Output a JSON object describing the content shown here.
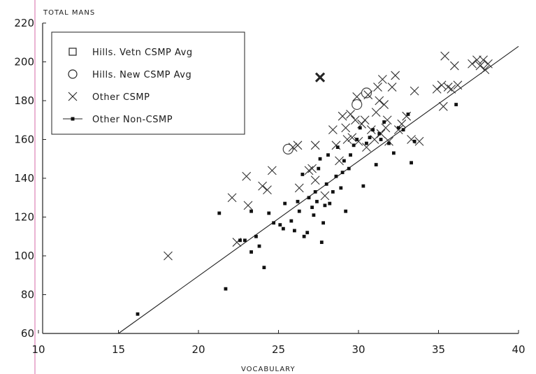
{
  "chart_data": {
    "type": "scatter",
    "xlabel": "VOCABULARY",
    "ylabel": "TOTAL MANS",
    "xlim": [
      10,
      40
    ],
    "ylim": [
      60,
      220
    ],
    "x_ticks": [
      10,
      15,
      20,
      25,
      30,
      35,
      40
    ],
    "y_ticks": [
      60,
      80,
      100,
      120,
      140,
      160,
      180,
      200,
      220
    ],
    "grid": false,
    "legend_position": "top-left",
    "legend": [
      {
        "label": "Hills. Vetn CSMP Avg",
        "marker": "square"
      },
      {
        "label": "Hills. New CSMP Avg",
        "marker": "circle"
      },
      {
        "label": "Other CSMP",
        "marker": "x"
      },
      {
        "label": "Other Non-CSMP",
        "marker": "dot-line"
      }
    ],
    "series": [
      {
        "name": "Hills. Vetn CSMP Avg",
        "marker": "square",
        "points": [
          [
            27.6,
            192
          ]
        ]
      },
      {
        "name": "Hills. New CSMP Avg",
        "marker": "circle",
        "points": [
          [
            25.6,
            155
          ],
          [
            29.9,
            178
          ],
          [
            30.5,
            184
          ]
        ]
      },
      {
        "name": "Other CSMP",
        "marker": "x",
        "points": [
          [
            18.1,
            100
          ],
          [
            22.1,
            130
          ],
          [
            22.4,
            107
          ],
          [
            23.0,
            141
          ],
          [
            23.1,
            126
          ],
          [
            24.0,
            136
          ],
          [
            24.3,
            134
          ],
          [
            24.6,
            144
          ],
          [
            25.9,
            156
          ],
          [
            26.2,
            157
          ],
          [
            26.3,
            135
          ],
          [
            26.9,
            144
          ],
          [
            27.1,
            145
          ],
          [
            27.3,
            157
          ],
          [
            27.3,
            139
          ],
          [
            27.6,
            192
          ],
          [
            27.9,
            131
          ],
          [
            28.4,
            165
          ],
          [
            28.6,
            157
          ],
          [
            28.8,
            149
          ],
          [
            29.0,
            172
          ],
          [
            29.2,
            166
          ],
          [
            29.3,
            160
          ],
          [
            29.5,
            173
          ],
          [
            29.6,
            161
          ],
          [
            29.8,
            170
          ],
          [
            29.9,
            182
          ],
          [
            30.0,
            159
          ],
          [
            30.2,
            168
          ],
          [
            30.4,
            170
          ],
          [
            30.5,
            156
          ],
          [
            30.6,
            183
          ],
          [
            30.8,
            165
          ],
          [
            31.0,
            160
          ],
          [
            31.1,
            174
          ],
          [
            31.2,
            187
          ],
          [
            31.3,
            180
          ],
          [
            31.4,
            163
          ],
          [
            31.5,
            191
          ],
          [
            31.6,
            178
          ],
          [
            31.7,
            166
          ],
          [
            31.8,
            170
          ],
          [
            31.9,
            159
          ],
          [
            32.1,
            187
          ],
          [
            32.3,
            193
          ],
          [
            32.5,
            165
          ],
          [
            32.7,
            168
          ],
          [
            33.0,
            172
          ],
          [
            33.3,
            160
          ],
          [
            33.5,
            185
          ],
          [
            33.8,
            159
          ],
          [
            34.9,
            186
          ],
          [
            35.2,
            188
          ],
          [
            35.3,
            177
          ],
          [
            35.4,
            203
          ],
          [
            35.6,
            187
          ],
          [
            35.8,
            186
          ],
          [
            36.0,
            198
          ],
          [
            36.2,
            188
          ],
          [
            37.1,
            199
          ],
          [
            37.4,
            201
          ],
          [
            37.6,
            198
          ],
          [
            37.8,
            201
          ],
          [
            37.9,
            196
          ],
          [
            38.1,
            199
          ]
        ]
      },
      {
        "name": "Other Non-CSMP",
        "marker": "dot",
        "points": [
          [
            16.2,
            70
          ],
          [
            21.3,
            122
          ],
          [
            21.7,
            83
          ],
          [
            22.6,
            108
          ],
          [
            22.9,
            108
          ],
          [
            23.3,
            123
          ],
          [
            23.3,
            102
          ],
          [
            23.6,
            110
          ],
          [
            23.8,
            105
          ],
          [
            24.1,
            94
          ],
          [
            24.4,
            122
          ],
          [
            24.7,
            117
          ],
          [
            25.1,
            116
          ],
          [
            25.3,
            114
          ],
          [
            25.4,
            127
          ],
          [
            25.8,
            118
          ],
          [
            26.0,
            113
          ],
          [
            26.2,
            128
          ],
          [
            26.3,
            123
          ],
          [
            26.5,
            142
          ],
          [
            26.6,
            110
          ],
          [
            26.8,
            112
          ],
          [
            26.9,
            130
          ],
          [
            27.1,
            125
          ],
          [
            27.2,
            121
          ],
          [
            27.3,
            133
          ],
          [
            27.4,
            128
          ],
          [
            27.5,
            145
          ],
          [
            27.6,
            150
          ],
          [
            27.7,
            107
          ],
          [
            27.8,
            117
          ],
          [
            27.9,
            126
          ],
          [
            28.0,
            137
          ],
          [
            28.1,
            152
          ],
          [
            28.2,
            127
          ],
          [
            28.4,
            133
          ],
          [
            28.6,
            141
          ],
          [
            28.7,
            156
          ],
          [
            28.9,
            135
          ],
          [
            29.0,
            143
          ],
          [
            29.1,
            149
          ],
          [
            29.2,
            123
          ],
          [
            29.4,
            145
          ],
          [
            29.5,
            152
          ],
          [
            29.7,
            157
          ],
          [
            29.9,
            160
          ],
          [
            30.1,
            166
          ],
          [
            30.3,
            136
          ],
          [
            30.5,
            158
          ],
          [
            30.7,
            161
          ],
          [
            30.9,
            165
          ],
          [
            31.1,
            147
          ],
          [
            31.3,
            163
          ],
          [
            31.4,
            160
          ],
          [
            31.6,
            169
          ],
          [
            31.9,
            158
          ],
          [
            32.2,
            153
          ],
          [
            32.5,
            166
          ],
          [
            32.8,
            165
          ],
          [
            33.1,
            173
          ],
          [
            33.3,
            148
          ],
          [
            33.5,
            159
          ],
          [
            36.1,
            178
          ]
        ]
      }
    ],
    "line": {
      "label": "Other Non-CSMP",
      "points": [
        [
          15.0,
          60
        ],
        [
          40.0,
          208
        ]
      ]
    }
  }
}
